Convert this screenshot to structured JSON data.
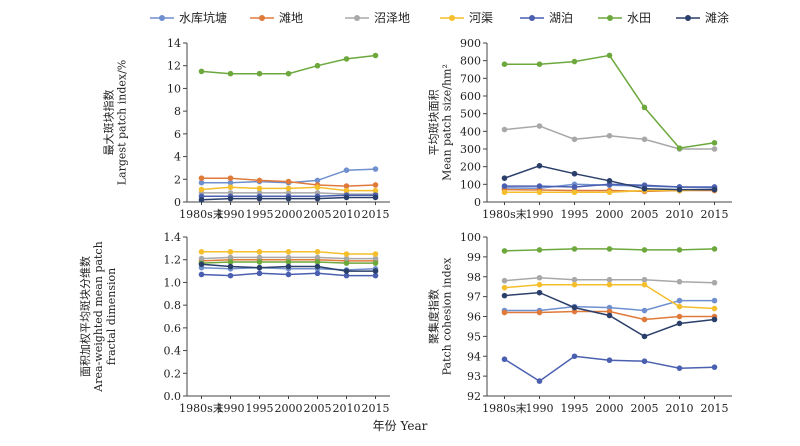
{
  "figure": {
    "xlabel": "年份 Year",
    "legend_position": "top"
  },
  "series_meta": [
    {
      "name": "水库坑塘",
      "color": "#6f8fcf"
    },
    {
      "name": "滩地",
      "color": "#e07a3a"
    },
    {
      "name": "沼泽地",
      "color": "#a8a8a8"
    },
    {
      "name": "河渠",
      "color": "#f5be2c"
    },
    {
      "name": "湖泊",
      "color": "#4a5fb0"
    },
    {
      "name": "水田",
      "color": "#6ca83c"
    },
    {
      "name": "滩涂",
      "color": "#2a3f6a"
    }
  ],
  "chart_data": [
    {
      "type": "line",
      "ylabel": [
        "最大斑块指数",
        "Largest patch index/%"
      ],
      "categories": [
        "1980s末",
        "1990",
        "1995",
        "2000",
        "2005",
        "2010",
        "2015"
      ],
      "ylim": [
        0,
        14
      ],
      "yticks": [
        0,
        2,
        4,
        6,
        8,
        10,
        12,
        14
      ],
      "grid": false,
      "series": [
        {
          "name": "水库坑塘",
          "values": [
            1.7,
            1.7,
            1.8,
            1.7,
            1.9,
            2.8,
            2.9
          ]
        },
        {
          "name": "滩地",
          "values": [
            2.1,
            2.1,
            1.9,
            1.8,
            1.5,
            1.4,
            1.5
          ]
        },
        {
          "name": "沼泽地",
          "values": [
            0.8,
            0.8,
            0.8,
            0.8,
            0.8,
            0.7,
            0.7
          ]
        },
        {
          "name": "河渠",
          "values": [
            1.1,
            1.3,
            1.2,
            1.2,
            1.3,
            1.0,
            1.0
          ]
        },
        {
          "name": "湖泊",
          "values": [
            0.5,
            0.5,
            0.5,
            0.5,
            0.5,
            0.6,
            0.6
          ]
        },
        {
          "name": "水田",
          "values": [
            11.5,
            11.3,
            11.3,
            11.3,
            12.0,
            12.6,
            12.9
          ]
        },
        {
          "name": "滩涂",
          "values": [
            0.2,
            0.3,
            0.3,
            0.3,
            0.3,
            0.4,
            0.4
          ]
        }
      ]
    },
    {
      "type": "line",
      "ylabel": [
        "平均斑块面积",
        "Mean patch size/hm²"
      ],
      "categories": [
        "1980s末",
        "1990",
        "1995",
        "2000",
        "2005",
        "2010",
        "2015"
      ],
      "ylim": [
        0,
        900
      ],
      "yticks": [
        0,
        100,
        200,
        300,
        400,
        500,
        600,
        700,
        800,
        900
      ],
      "grid": false,
      "series": [
        {
          "name": "水库坑塘",
          "values": [
            80,
            78,
            100,
            95,
            90,
            85,
            80
          ]
        },
        {
          "name": "滩地",
          "values": [
            70,
            68,
            65,
            65,
            60,
            65,
            65
          ]
        },
        {
          "name": "沼泽地",
          "values": [
            410,
            430,
            355,
            375,
            355,
            300,
            300
          ]
        },
        {
          "name": "河渠",
          "values": [
            55,
            55,
            55,
            55,
            65,
            65,
            70
          ]
        },
        {
          "name": "湖泊",
          "values": [
            90,
            90,
            85,
            100,
            95,
            85,
            85
          ]
        },
        {
          "name": "水田",
          "values": [
            780,
            780,
            795,
            830,
            535,
            305,
            335
          ]
        },
        {
          "name": "滩涂",
          "values": [
            135,
            205,
            160,
            120,
            75,
            70,
            70
          ]
        }
      ]
    },
    {
      "type": "line",
      "ylabel": [
        "面积加权平均斑块分维数",
        "Area-weighted mean patch",
        "fractal dimension"
      ],
      "categories": [
        "1980s末",
        "1990",
        "1995",
        "2000",
        "2005",
        "2010",
        "2015"
      ],
      "ylim": [
        0,
        1.4
      ],
      "yticks": [
        0,
        0.2,
        0.4,
        0.6,
        0.8,
        1.0,
        1.2,
        1.4
      ],
      "grid": false,
      "series": [
        {
          "name": "水库坑塘",
          "values": [
            1.13,
            1.12,
            1.13,
            1.12,
            1.12,
            1.11,
            1.12
          ]
        },
        {
          "name": "滩地",
          "values": [
            1.19,
            1.2,
            1.2,
            1.2,
            1.2,
            1.19,
            1.19
          ]
        },
        {
          "name": "沼泽地",
          "values": [
            1.21,
            1.22,
            1.22,
            1.22,
            1.22,
            1.21,
            1.21
          ]
        },
        {
          "name": "河渠",
          "values": [
            1.27,
            1.27,
            1.27,
            1.27,
            1.27,
            1.25,
            1.25
          ]
        },
        {
          "name": "湖泊",
          "values": [
            1.07,
            1.06,
            1.08,
            1.07,
            1.08,
            1.06,
            1.06
          ]
        },
        {
          "name": "水田",
          "values": [
            1.17,
            1.18,
            1.18,
            1.18,
            1.18,
            1.17,
            1.17
          ]
        },
        {
          "name": "滩涂",
          "values": [
            1.16,
            1.14,
            1.13,
            1.14,
            1.14,
            1.1,
            1.1
          ]
        }
      ]
    },
    {
      "type": "line",
      "ylabel": [
        "聚集度指数",
        "Patch cohesion index"
      ],
      "categories": [
        "1980s末",
        "1990",
        "1995",
        "2000",
        "2005",
        "2010",
        "2015"
      ],
      "ylim": [
        92,
        100
      ],
      "yticks": [
        92,
        93,
        94,
        95,
        96,
        97,
        98,
        99,
        100
      ],
      "grid": false,
      "series": [
        {
          "name": "水库坑塘",
          "values": [
            96.3,
            96.3,
            96.5,
            96.45,
            96.3,
            96.8,
            96.8
          ]
        },
        {
          "name": "滩地",
          "values": [
            96.2,
            96.2,
            96.25,
            96.25,
            95.85,
            96.0,
            96.0
          ]
        },
        {
          "name": "沼泽地",
          "values": [
            97.8,
            97.95,
            97.85,
            97.85,
            97.85,
            97.75,
            97.7
          ]
        },
        {
          "name": "河渠",
          "values": [
            97.45,
            97.6,
            97.6,
            97.6,
            97.6,
            96.5,
            96.4
          ]
        },
        {
          "name": "湖泊",
          "values": [
            93.85,
            92.75,
            94.0,
            93.8,
            93.75,
            93.4,
            93.45
          ]
        },
        {
          "name": "水田",
          "values": [
            99.3,
            99.35,
            99.4,
            99.4,
            99.35,
            99.35,
            99.4
          ]
        },
        {
          "name": "滩涂",
          "values": [
            97.05,
            97.2,
            96.45,
            96.05,
            95.0,
            95.65,
            95.85
          ]
        }
      ]
    }
  ]
}
